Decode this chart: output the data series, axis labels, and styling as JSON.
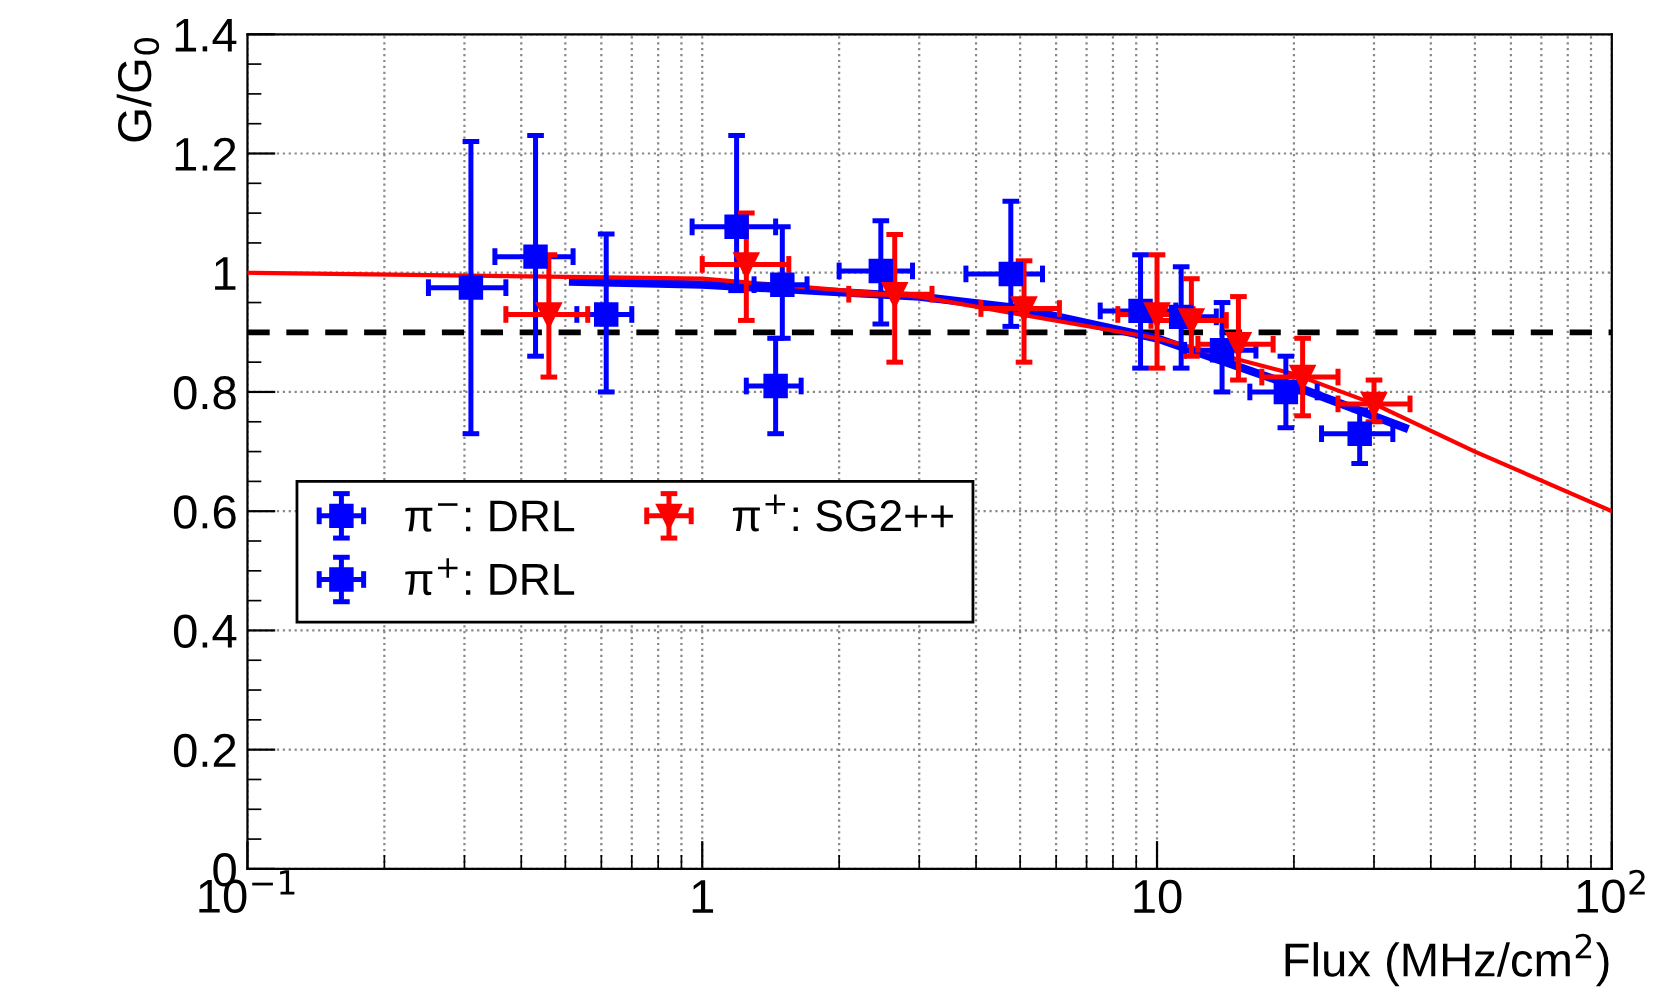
{
  "chart_data": {
    "type": "scatter",
    "xlabel": "Flux (MHz/cm$^{2}$)",
    "ylabel": "G/G$_{0}$",
    "log": "x",
    "xlim": [
      0.1,
      100
    ],
    "xticks": [
      {
        "value": 0.1,
        "label": "10$^{−1}$"
      },
      1,
      10,
      {
        "value": 100,
        "label": "10$^{2}$"
      }
    ],
    "ylim": [
      0,
      1.4
    ],
    "yticks": [
      0,
      0.2,
      0.4,
      0.6,
      0.8,
      1,
      1.2,
      1.4
    ],
    "grid": true,
    "legend": "left",
    "ref_lines": [
      {
        "axis": "y",
        "value": 0.9,
        "color": "#000000",
        "line_style": "dashed"
      }
    ],
    "series": [
      {
        "name": "π$^{−}$: DRL",
        "color": "#0000ff",
        "marker": "square",
        "x": [
          0.31,
          0.615,
          1.5,
          1.45
        ],
        "values": [
          0.975,
          0.93,
          0.98,
          0.81
        ],
        "errors": [
          [
            0.73,
            1.22
          ],
          [
            0.8,
            1.065
          ],
          [
            0.89,
            1.077
          ],
          [
            0.73,
            0.89
          ]
        ],
        "xerrors": [
          [
            0.25,
            0.37
          ],
          [
            0.53,
            0.7
          ],
          [
            1.3,
            1.7
          ],
          [
            1.25,
            1.65
          ]
        ]
      },
      {
        "name": "π$^{+}$: DRL",
        "color": "#0000ff",
        "marker": "square",
        "x": [
          0.43,
          1.19,
          2.47,
          4.77,
          9.2,
          11.3,
          13.9,
          19.2,
          27.9
        ],
        "values": [
          1.027,
          1.077,
          1.003,
          0.998,
          0.936,
          0.926,
          0.87,
          0.8,
          0.73
        ],
        "errors": [
          [
            0.86,
            1.23
          ],
          [
            0.97,
            1.23
          ],
          [
            0.914,
            1.087
          ],
          [
            0.91,
            1.12
          ],
          [
            0.84,
            1.03
          ],
          [
            0.84,
            1.01
          ],
          [
            0.8,
            0.95
          ],
          [
            0.74,
            0.86
          ],
          [
            0.68,
            0.77
          ]
        ],
        "xerrors": [
          [
            0.35,
            0.52
          ],
          [
            0.95,
            1.45
          ],
          [
            2.0,
            2.9
          ],
          [
            3.8,
            5.6
          ],
          [
            7.5,
            11
          ],
          [
            11.3,
            13.5
          ],
          [
            11.5,
            16.5
          ],
          [
            16,
            22.5
          ],
          [
            23,
            33
          ]
        ]
      },
      {
        "name": "π$^{+}$: SG2++",
        "color": "#ff0000",
        "marker": "triangle",
        "x": [
          0.46,
          1.25,
          2.65,
          5.1,
          10.0,
          11.9,
          15.1,
          20.9,
          30
        ],
        "values": [
          0.93,
          1.014,
          0.964,
          0.94,
          0.93,
          0.92,
          0.88,
          0.825,
          0.78
        ],
        "errors": [
          [
            0.825,
            1.03
          ],
          [
            0.92,
            1.1
          ],
          [
            0.85,
            1.064
          ],
          [
            0.85,
            1.02
          ],
          [
            0.84,
            1.03
          ],
          [
            0.86,
            0.99
          ],
          [
            0.82,
            0.96
          ],
          [
            0.76,
            0.89
          ],
          [
            0.75,
            0.82
          ]
        ],
        "xerrors": [
          [
            0.37,
            0.56
          ],
          [
            1.0,
            1.55
          ],
          [
            2.1,
            3.2
          ],
          [
            4.1,
            6.1
          ],
          [
            8.2,
            12
          ],
          [
            9.7,
            14.2
          ],
          [
            12.3,
            18
          ],
          [
            17,
            25
          ],
          [
            25,
            36
          ]
        ]
      },
      {
        "type": "line",
        "color": "#0000ff",
        "x": [
          0.52,
          1,
          3,
          5,
          10,
          20,
          35
        ],
        "values": [
          0.985,
          0.98,
          0.96,
          0.94,
          0.89,
          0.81,
          0.74
        ]
      },
      {
        "type": "line",
        "color": "#ff0000",
        "x": [
          0.1,
          1,
          3,
          5,
          10,
          20,
          30,
          50,
          100
        ],
        "values": [
          1.0,
          0.99,
          0.96,
          0.93,
          0.89,
          0.83,
          0.78,
          0.7,
          0.6
        ]
      }
    ]
  }
}
